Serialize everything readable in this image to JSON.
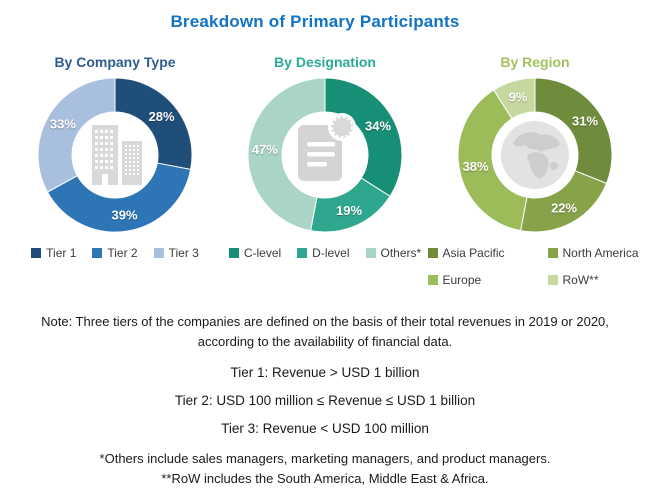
{
  "page": {
    "title": "Breakdown of Primary Participants",
    "title_color": "#1273C4"
  },
  "chart_data": [
    {
      "type": "donut",
      "title": "By Company Type",
      "title_color": "#2E5C90",
      "center_icon": "building-icon",
      "categories": [
        "Tier 1",
        "Tier 2",
        "Tier 3"
      ],
      "values": [
        28,
        39,
        33
      ],
      "unit": "%",
      "colors": [
        "#1F4E79",
        "#2E75B6",
        "#A8BFDD"
      ],
      "legend_position": "bottom",
      "legend_columns": 3,
      "start_angle_deg": 0,
      "direction": "clockwise"
    },
    {
      "type": "donut",
      "title": "By Designation",
      "title_color": "#2BAC96",
      "center_icon": "document-icon",
      "categories": [
        "C-level",
        "D-level",
        "Others*"
      ],
      "values": [
        34,
        19,
        47
      ],
      "unit": "%",
      "colors": [
        "#178F77",
        "#2FA78E",
        "#A9D4C6"
      ],
      "legend_position": "bottom",
      "legend_columns": 3,
      "start_angle_deg": 0,
      "direction": "clockwise"
    },
    {
      "type": "donut",
      "title": "By Region",
      "title_color": "#A3C15E",
      "center_icon": "globe-icon",
      "categories": [
        "Asia Pacific",
        "North America",
        "Europe",
        "RoW**"
      ],
      "values": [
        31,
        22,
        38,
        9
      ],
      "unit": "%",
      "colors": [
        "#6E8C3B",
        "#87A34A",
        "#9BBC59",
        "#C6D89F"
      ],
      "legend_position": "bottom",
      "legend_columns": 2,
      "start_angle_deg": 0,
      "direction": "clockwise"
    }
  ],
  "notes": {
    "lines": [
      "Note: Three tiers of the companies are defined on the basis of their total revenues in 2019 or 2020,",
      "according to the availability of financial data.",
      "Tier 1: Revenue > USD 1 billion",
      "Tier 2: USD 100 million ≤ Revenue ≤ USD 1 billion",
      "Tier 3: Revenue < USD 100 million",
      "*Others include sales managers, marketing managers, and product managers.",
      "**RoW includes the South America, Middle East & Africa."
    ]
  }
}
